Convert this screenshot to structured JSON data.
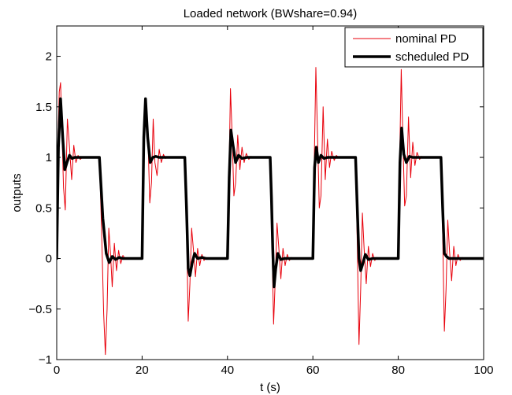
{
  "chart_data": {
    "type": "line",
    "title": "Loaded network (BWshare=0.94)",
    "xlabel": "t (s)",
    "ylabel": "outputs",
    "xlim": [
      0,
      100
    ],
    "ylim": [
      -1,
      2.3
    ],
    "xticks": [
      0,
      20,
      40,
      60,
      80,
      100
    ],
    "yticks": [
      -1,
      -0.5,
      0,
      0.5,
      1,
      1.5,
      2
    ],
    "xtick_labels": [
      "0",
      "20",
      "40",
      "60",
      "80",
      "100"
    ],
    "ytick_labels": [
      "−1",
      "−0.5",
      "0",
      "0.5",
      "1",
      "1.5",
      "2"
    ],
    "grid": false,
    "legend_position": "top-right",
    "legend": [
      "nominal PD",
      "scheduled PD"
    ],
    "series": [
      {
        "name": "nominal PD",
        "color": "#e8000b",
        "line_width": "thin",
        "x": [
          0,
          0.3,
          0.6,
          0.9,
          1.2,
          1.6,
          2.0,
          2.5,
          3.0,
          3.5,
          4.0,
          4.5,
          5.0,
          5.5,
          6.0,
          7.0,
          8.0,
          10.0,
          10.5,
          11.0,
          11.4,
          11.8,
          12.2,
          12.6,
          13.0,
          13.5,
          14.0,
          14.5,
          15.0,
          15.5,
          16.0,
          17.0,
          18.0,
          20.0,
          20.3,
          20.6,
          21.0,
          21.4,
          21.8,
          22.2,
          22.6,
          23.0,
          23.5,
          24.0,
          24.5,
          25.0,
          25.5,
          26.0,
          27.0,
          28.0,
          30.0,
          30.4,
          30.8,
          31.2,
          31.6,
          32.0,
          32.5,
          33.0,
          33.5,
          34.0,
          34.5,
          35.0,
          35.5,
          36.0,
          37.0,
          38.0,
          40.0,
          40.3,
          40.7,
          41.1,
          41.5,
          41.9,
          42.4,
          42.9,
          43.4,
          43.9,
          44.4,
          45.0,
          45.5,
          46.0,
          47.0,
          48.0,
          50.0,
          50.4,
          50.8,
          51.2,
          51.6,
          52.0,
          52.5,
          53.0,
          53.5,
          54.0,
          54.5,
          55.0,
          55.5,
          56.0,
          57.0,
          58.0,
          60.0,
          60.3,
          60.7,
          61.1,
          61.5,
          61.9,
          62.4,
          62.9,
          63.4,
          63.9,
          64.4,
          65.0,
          65.5,
          66.0,
          67.0,
          68.0,
          70.0,
          70.4,
          70.8,
          71.2,
          71.6,
          72.0,
          72.5,
          73.0,
          73.5,
          74.0,
          74.5,
          75.0,
          75.5,
          76.0,
          77.0,
          78.0,
          80.0,
          80.3,
          80.7,
          81.1,
          81.5,
          81.9,
          82.4,
          82.9,
          83.4,
          83.9,
          84.4,
          85.0,
          85.5,
          86.0,
          87.0,
          88.0,
          90.0,
          90.4,
          90.8,
          91.2,
          91.6,
          92.0,
          92.5,
          93.0,
          93.5,
          94.0,
          94.5,
          95.0,
          95.5,
          96.0,
          97.0,
          100.0
        ],
        "y": [
          0,
          1.2,
          1.65,
          1.74,
          1.3,
          0.7,
          0.48,
          1.38,
          1.1,
          0.78,
          1.12,
          0.95,
          1.02,
          0.98,
          1.0,
          1.0,
          1.0,
          1.0,
          0.3,
          -0.55,
          -0.95,
          -0.5,
          0.3,
          0.05,
          -0.28,
          0.15,
          -0.12,
          0.08,
          -0.05,
          0.03,
          0.0,
          0.0,
          0.0,
          0.0,
          0.8,
          1.45,
          1.57,
          1.15,
          0.55,
          0.75,
          1.38,
          0.95,
          0.82,
          1.08,
          0.95,
          1.03,
          0.99,
          1.0,
          1.0,
          1.0,
          1.0,
          0.35,
          -0.62,
          -0.25,
          0.3,
          0.1,
          -0.18,
          0.1,
          -0.07,
          0.04,
          -0.02,
          0.01,
          0.0,
          0.0,
          0.0,
          0.0,
          0.0,
          0.7,
          1.68,
          1.2,
          0.62,
          0.75,
          1.22,
          0.88,
          1.1,
          0.95,
          1.04,
          0.98,
          1.01,
          1.0,
          1.0,
          1.0,
          1.0,
          0.2,
          -0.65,
          -0.2,
          0.35,
          0.12,
          -0.2,
          0.1,
          -0.07,
          0.04,
          -0.02,
          0.01,
          0.0,
          0.0,
          0.0,
          0.0,
          0.0,
          0.9,
          1.89,
          1.2,
          0.5,
          0.62,
          1.5,
          0.78,
          1.18,
          0.9,
          1.06,
          0.97,
          1.02,
          1.0,
          1.0,
          1.0,
          1.0,
          0.15,
          -0.85,
          -0.3,
          0.45,
          0.1,
          -0.25,
          0.12,
          -0.08,
          0.05,
          -0.02,
          0.01,
          0.0,
          0.0,
          0.0,
          0.0,
          0.0,
          0.9,
          1.87,
          1.15,
          0.52,
          0.62,
          1.4,
          0.8,
          1.15,
          0.92,
          1.05,
          0.98,
          1.01,
          1.0,
          1.0,
          1.0,
          1.0,
          0.25,
          -0.72,
          -0.3,
          0.38,
          0.08,
          -0.22,
          0.12,
          -0.07,
          0.04,
          -0.02,
          0.01,
          0.0,
          0.0,
          0.0,
          0.0
        ]
      },
      {
        "name": "scheduled PD",
        "color": "#000000",
        "line_width": "thick",
        "x": [
          0,
          0.4,
          0.9,
          1.4,
          1.9,
          2.4,
          3.0,
          3.6,
          4.2,
          5.0,
          10.0,
          10.8,
          11.6,
          12.3,
          13.0,
          13.8,
          14.6,
          15.5,
          16.5,
          20.0,
          20.4,
          20.8,
          21.3,
          21.9,
          22.5,
          23.2,
          24.0,
          25.0,
          30.0,
          30.4,
          30.8,
          31.2,
          31.7,
          32.3,
          33.0,
          34.0,
          35.0,
          40.0,
          40.4,
          40.8,
          41.3,
          41.9,
          42.6,
          43.4,
          44.5,
          50.0,
          50.3,
          50.6,
          50.9,
          51.3,
          51.8,
          52.5,
          53.3,
          54.5,
          60.0,
          60.4,
          60.8,
          61.3,
          61.9,
          62.6,
          63.4,
          64.5,
          70.0,
          70.4,
          70.8,
          71.2,
          71.7,
          72.3,
          73.0,
          74.0,
          75.0,
          80.0,
          80.4,
          80.8,
          81.3,
          81.9,
          82.6,
          83.4,
          84.5,
          90.0,
          90.4,
          90.8,
          91.3,
          91.9,
          92.6,
          93.5,
          95.0,
          100.0
        ],
        "y": [
          0,
          1.1,
          1.58,
          1.2,
          0.88,
          0.95,
          1.02,
          0.99,
          1.0,
          1.0,
          1.0,
          0.4,
          0.05,
          -0.04,
          0.02,
          -0.01,
          0.01,
          0.0,
          0.0,
          0.0,
          1.2,
          1.58,
          1.2,
          0.95,
          1.0,
          1.01,
          1.0,
          1.0,
          1.0,
          0.5,
          -0.1,
          -0.17,
          -0.05,
          0.05,
          0.0,
          0.01,
          0.0,
          0.0,
          0.8,
          1.27,
          1.12,
          0.95,
          1.02,
          0.99,
          1.0,
          1.0,
          0.6,
          0.1,
          -0.28,
          -0.1,
          0.05,
          -0.01,
          0.0,
          0.0,
          0.0,
          0.9,
          1.1,
          0.95,
          1.02,
          0.99,
          1.0,
          1.0,
          1.0,
          0.5,
          0.0,
          -0.12,
          -0.05,
          0.04,
          -0.01,
          0.0,
          0.0,
          0.0,
          0.95,
          1.29,
          1.03,
          0.95,
          1.01,
          1.0,
          1.0,
          1.0,
          0.5,
          0.05,
          0.02,
          0.0,
          0.0,
          0.0,
          0.0,
          0.0
        ]
      }
    ]
  }
}
